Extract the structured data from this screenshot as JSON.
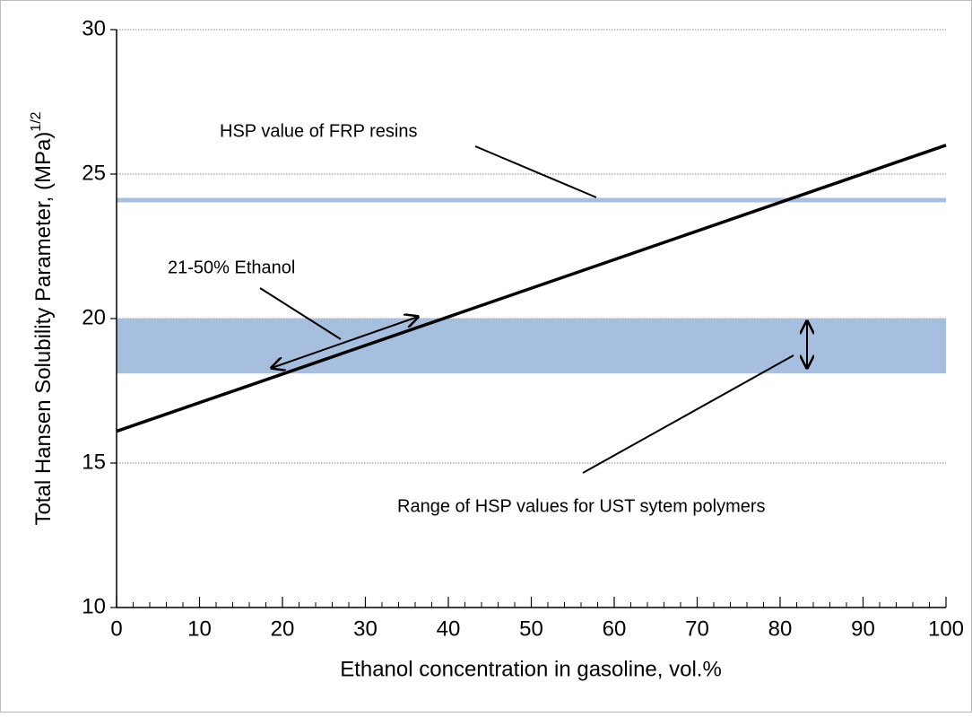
{
  "chart_data": {
    "type": "line",
    "xlabel": "Ethanol concentration in gasoline, vol.%",
    "ylabel": "Total Hansen Solubility Parameter, (MPa)",
    "ylabel_superscript": "1/2",
    "x": [
      0,
      100
    ],
    "series": [
      {
        "color": "#000000",
        "values": [
          16.1,
          26.0
        ]
      }
    ],
    "bands": [
      {
        "ymin": 18.1,
        "ymax": 20,
        "color": "#a7bfdf"
      }
    ],
    "hlines": [
      {
        "y": 24.1,
        "color": "#a7bfdf"
      }
    ],
    "annotations": [
      "HSP value of FRP resins",
      "21-50% Ethanol",
      "Range of HSP values for UST sytem polymers"
    ],
    "xlim": [
      0,
      100
    ],
    "xticks": [
      0,
      10,
      20,
      30,
      40,
      50,
      60,
      70,
      80,
      90,
      100
    ],
    "ylim": [
      10,
      30
    ],
    "yticks": [
      10,
      15,
      20,
      25,
      30
    ],
    "grid": true
  }
}
